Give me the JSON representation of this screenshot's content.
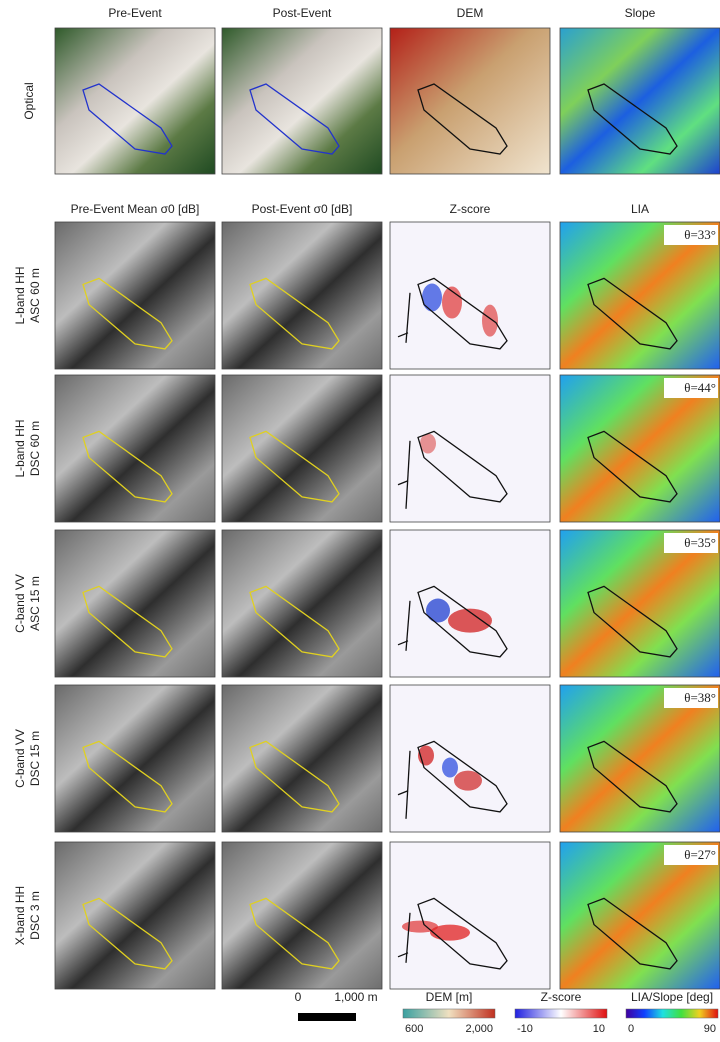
{
  "column_headers_top": [
    "Pre-Event",
    "Post-Event",
    "DEM",
    "Slope"
  ],
  "row_label_top": "Optical",
  "column_headers_sar": [
    "Pre-Event Mean σ0 [dB]",
    "Post-Event σ0 [dB]",
    "Z-score",
    "LIA"
  ],
  "rows": [
    {
      "label": [
        "L-band HH",
        "ASC 60 m"
      ],
      "theta": "θ=33°"
    },
    {
      "label": [
        "L-band HH",
        "DSC 60 m"
      ],
      "theta": "θ=44°"
    },
    {
      "label": [
        "C-band VV",
        "ASC 15 m"
      ],
      "theta": "θ=35°"
    },
    {
      "label": [
        "C-band VV",
        "DSC 15 m"
      ],
      "theta": "θ=38°"
    },
    {
      "label": [
        "X-band HH",
        "DSC 3 m"
      ],
      "theta": "θ=27°"
    }
  ],
  "scale_bar": {
    "start": "0",
    "end": "1,000 m"
  },
  "colorbars": [
    {
      "title": "DEM [m]",
      "min": "600",
      "max": "2,000"
    },
    {
      "title": "Z-score",
      "min": "-10",
      "max": "10"
    },
    {
      "title": "LIA/Slope [deg]",
      "min": "0",
      "max": "90"
    }
  ]
}
